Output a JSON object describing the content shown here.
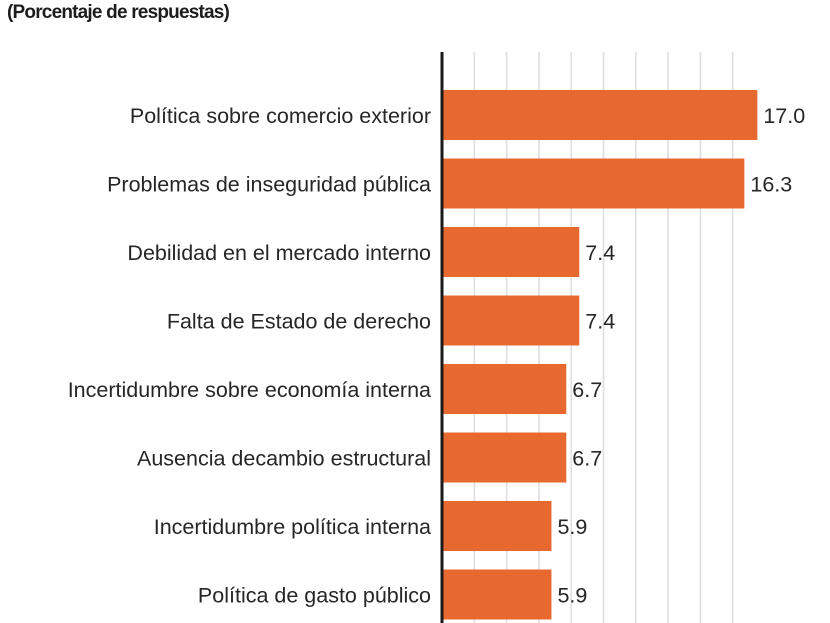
{
  "chart_data": {
    "type": "bar",
    "orientation": "horizontal",
    "title": "",
    "subtitle": "(Porcentaje de respuestas)",
    "xlabel": "",
    "ylabel": "",
    "categories": [
      "Política sobre comercio exterior",
      "Problemas de inseguridad pública",
      "Debilidad en el mercado interno",
      "Falta de Estado de derecho",
      "Incertidumbre sobre economía interna",
      "Ausencia decambio estructural",
      "Incertidumbre política interna",
      "Política de gasto público"
    ],
    "values": [
      17.0,
      16.3,
      7.4,
      7.4,
      6.7,
      6.7,
      5.9,
      5.9
    ],
    "value_labels": [
      "17.0",
      "16.3",
      "7.4",
      "7.4",
      "6.7",
      "6.7",
      "5.9",
      "5.9"
    ],
    "xlim": [
      0,
      18
    ],
    "grid": true,
    "legend": "none",
    "colors": {
      "bar": "#E8692F",
      "grid": "#dcdfe3",
      "axis": "#1a1a1a",
      "text": "#262626"
    }
  }
}
